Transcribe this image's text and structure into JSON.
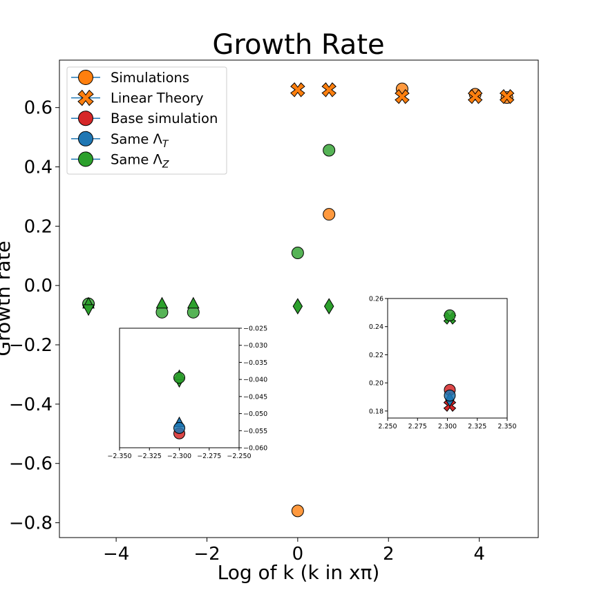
{
  "chart_data": {
    "type": "scatter",
    "title": "Growth Rate",
    "xlabel": "Log of k (k in xπ)",
    "ylabel": "Growth rate",
    "xlim": [
      -5.25,
      5.3
    ],
    "ylim": [
      -0.85,
      0.76
    ],
    "xticks": [
      -4,
      -2,
      0,
      2,
      4
    ],
    "xtick_labels": [
      "−4",
      "−2",
      "0",
      "2",
      "4"
    ],
    "yticks": [
      -0.8,
      -0.6,
      -0.4,
      -0.2,
      0.0,
      0.2,
      0.4,
      0.6
    ],
    "ytick_labels": [
      "−0.8",
      "−0.6",
      "−0.4",
      "−0.2",
      "0.0",
      "0.2",
      "0.4",
      "0.6"
    ],
    "grid": false,
    "legend_position": "upper-left",
    "legend": [
      {
        "label": "Simulations",
        "marker": "circle",
        "color": "#ff7f0e"
      },
      {
        "label": "Linear Theory",
        "marker": "x",
        "color": "#ff7f0e"
      },
      {
        "label": "Base simulation",
        "marker": "circle",
        "color": "#d62728"
      },
      {
        "label": "Same Λ",
        "sub": "T",
        "marker": "circle",
        "color": "#1f77b4"
      },
      {
        "label": "Same Λ",
        "sub": "Z",
        "marker": "circle",
        "color": "#2ca02c"
      }
    ],
    "series": [
      {
        "name": "Simulations",
        "marker": "circle",
        "color": "#ff7f0e",
        "points": [
          [
            0.0,
            -0.76
          ],
          [
            0.69,
            0.24
          ],
          [
            2.3,
            0.663
          ],
          [
            3.91,
            0.645
          ],
          [
            4.61,
            0.634
          ]
        ]
      },
      {
        "name": "Linear Theory",
        "marker": "x",
        "color": "#ff7f0e",
        "points": [
          [
            0.0,
            0.66
          ],
          [
            0.69,
            0.66
          ],
          [
            2.3,
            0.637
          ],
          [
            3.91,
            0.637
          ],
          [
            4.61,
            0.637
          ]
        ]
      },
      {
        "marker": "circle",
        "color": "#2ca02c",
        "points": [
          [
            -4.61,
            -0.062
          ],
          [
            -2.99,
            -0.09
          ],
          [
            -2.3,
            -0.09
          ],
          [
            0.0,
            0.11
          ],
          [
            0.69,
            0.456
          ]
        ]
      },
      {
        "marker": "triangle-up",
        "color": "#2ca02c",
        "points": [
          [
            -4.61,
            -0.063
          ],
          [
            -2.99,
            -0.063
          ],
          [
            -2.3,
            -0.063
          ]
        ]
      },
      {
        "marker": "triangle-down",
        "color": "#2ca02c",
        "points": [
          [
            -4.61,
            -0.078
          ]
        ]
      },
      {
        "marker": "diamond",
        "color": "#2ca02c",
        "points": [
          [
            0.0,
            -0.07
          ],
          [
            0.69,
            -0.07
          ]
        ]
      }
    ],
    "insets": [
      {
        "xlim": [
          -2.35,
          -2.25
        ],
        "ylim": [
          -0.06,
          -0.025
        ],
        "xticks": [
          -2.35,
          -2.325,
          -2.3,
          -2.275,
          -2.25
        ],
        "xtick_labels": [
          "−2.350",
          "−2.325",
          "−2.300",
          "−2.275",
          "−2.250"
        ],
        "yticks": [
          -0.025,
          -0.03,
          -0.035,
          -0.04,
          -0.045,
          -0.05,
          -0.055,
          -0.06
        ],
        "ytick_labels": [
          "−0.025",
          "−0.030",
          "−0.035",
          "−0.040",
          "−0.045",
          "−0.050",
          "−0.055",
          "−0.060"
        ],
        "y_axis_side": "right",
        "series": [
          {
            "marker": "triangle-down",
            "color": "#2ca02c",
            "points": [
              [
                -2.3,
                -0.0405
              ]
            ]
          },
          {
            "marker": "triangle-up",
            "color": "#2ca02c",
            "points": [
              [
                -2.3,
                -0.039
              ]
            ]
          },
          {
            "marker": "circle",
            "color": "#2ca02c",
            "points": [
              [
                -2.3,
                -0.0395
              ]
            ]
          },
          {
            "marker": "circle",
            "color": "#d62728",
            "points": [
              [
                -2.3,
                -0.0558
              ]
            ]
          },
          {
            "marker": "triangle-up",
            "color": "#1f77b4",
            "points": [
              [
                -2.3,
                -0.0528
              ]
            ]
          },
          {
            "marker": "circle",
            "color": "#1f77b4",
            "points": [
              [
                -2.3,
                -0.0542
              ]
            ]
          }
        ]
      },
      {
        "xlim": [
          2.25,
          2.35
        ],
        "ylim": [
          0.175,
          0.26
        ],
        "xticks": [
          2.25,
          2.275,
          2.3,
          2.325,
          2.35
        ],
        "xtick_labels": [
          "2.250",
          "2.275",
          "2.300",
          "2.325",
          "2.350"
        ],
        "yticks": [
          0.18,
          0.2,
          0.22,
          0.24,
          0.26
        ],
        "ytick_labels": [
          "0.18",
          "0.20",
          "0.22",
          "0.24",
          "0.26"
        ],
        "y_axis_side": "left",
        "series": [
          {
            "marker": "x",
            "color": "#d62728",
            "points": [
              [
                2.302,
                0.184
              ]
            ]
          },
          {
            "marker": "circle",
            "color": "#d62728",
            "points": [
              [
                2.302,
                0.195
              ]
            ]
          },
          {
            "marker": "diamond",
            "color": "#1f77b4",
            "points": [
              [
                2.302,
                0.188
              ]
            ]
          },
          {
            "marker": "circle",
            "color": "#1f77b4",
            "points": [
              [
                2.302,
                0.191
              ]
            ]
          },
          {
            "marker": "x",
            "color": "#2ca02c",
            "points": [
              [
                2.302,
                0.246
              ]
            ]
          },
          {
            "marker": "circle",
            "color": "#2ca02c",
            "points": [
              [
                2.302,
                0.248
              ]
            ]
          }
        ]
      }
    ]
  }
}
